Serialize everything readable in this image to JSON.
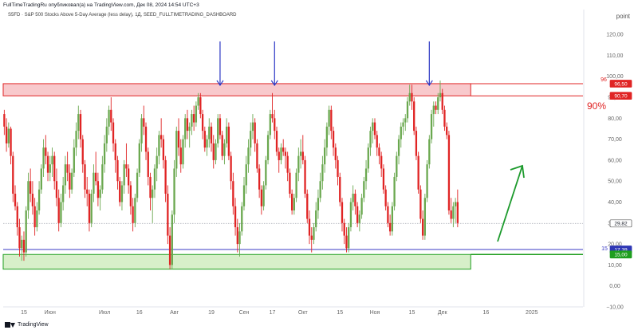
{
  "header": {
    "text": "FullTimeTradingRu опубликовал(а) на TradingView.com, Дек 08, 2024 14:54 UTC+3"
  },
  "symbol_line": "S5FD · S&P 500 Stocks Above 5-Day Average (less delay), 1Д, SEED_FULLTIMETRADING_DASHBOARD",
  "unit_label": "point",
  "footer": {
    "brand": "TradingView"
  },
  "colors": {
    "up": "#6aa84f",
    "down": "#e02424",
    "resistance_zone": "#f8c9cc",
    "resistance_line": "#e02424",
    "support_zone": "#d7efc9",
    "support_line": "#1f9e1f",
    "blue_line": "#3b3bc4",
    "arrow_blue": "#2a36c4",
    "arrow_green": "#1c9a2c"
  },
  "annotations": {
    "level_96": "96",
    "level_15": "15",
    "pct_text": "90%"
  },
  "price_tags": [
    {
      "text": "96,50",
      "value": 96.5,
      "bg": "#e02424"
    },
    {
      "text": "90,70",
      "value": 90.7,
      "bg": "#e02424"
    },
    {
      "text": "29,82",
      "value": 29.82,
      "bg": "#ffffff"
    },
    {
      "text": "17,39",
      "value": 17.39,
      "bg": "#2e37b5"
    },
    {
      "text": "15,00",
      "value": 15.0,
      "bg": "#1f9e1f"
    }
  ],
  "chart_data": {
    "type": "candlestick",
    "ylim": [
      -10,
      125
    ],
    "yticks": [
      120,
      110,
      100,
      90,
      80,
      70,
      60,
      50,
      40,
      30,
      20,
      10,
      0,
      -10
    ],
    "ytick_labels": [
      "120,00",
      "110,00",
      "100,00",
      "90,00",
      "80,00",
      "70,00",
      "60,00",
      "50,00",
      "40,00",
      "30,00",
      "20,00",
      "10,00",
      "0,00",
      "−10,00"
    ],
    "xticks": [
      {
        "label": "15",
        "i": 9
      },
      {
        "label": "Июн",
        "i": 21
      },
      {
        "label": "Июл",
        "i": 46
      },
      {
        "label": "16",
        "i": 62
      },
      {
        "label": "Авг",
        "i": 78
      },
      {
        "label": "19",
        "i": 95
      },
      {
        "label": "Сен",
        "i": 110
      },
      {
        "label": "17",
        "i": 123
      },
      {
        "label": "Окт",
        "i": 137
      },
      {
        "label": "15",
        "i": 154
      },
      {
        "label": "Ноя",
        "i": 170
      },
      {
        "label": "15",
        "i": 187
      },
      {
        "label": "Дек",
        "i": 201
      },
      {
        "label": "16",
        "i": 221
      },
      {
        "label": "2025",
        "i": 242
      }
    ],
    "x_slots": 266,
    "resistance_zone": [
      90.7,
      96.5
    ],
    "support_zone": [
      8.0,
      15.0
    ],
    "blue_level": 17.39,
    "current_value": 29.82,
    "down_arrows_i": [
      99,
      124,
      195
    ],
    "candles": [
      [
        82,
        84,
        72,
        76
      ],
      [
        76,
        80,
        64,
        68
      ],
      [
        68,
        78,
        66,
        75
      ],
      [
        75,
        76,
        58,
        62
      ],
      [
        62,
        64,
        40,
        44
      ],
      [
        44,
        48,
        36,
        38
      ],
      [
        38,
        40,
        24,
        28
      ],
      [
        28,
        32,
        14,
        18
      ],
      [
        18,
        24,
        12,
        22
      ],
      [
        22,
        26,
        12,
        16
      ],
      [
        16,
        38,
        14,
        36
      ],
      [
        36,
        54,
        32,
        50
      ],
      [
        50,
        56,
        40,
        44
      ],
      [
        44,
        50,
        34,
        38
      ],
      [
        38,
        42,
        24,
        28
      ],
      [
        28,
        40,
        26,
        36
      ],
      [
        36,
        50,
        34,
        46
      ],
      [
        46,
        58,
        44,
        56
      ],
      [
        56,
        70,
        52,
        66
      ],
      [
        66,
        72,
        58,
        62
      ],
      [
        62,
        64,
        50,
        54
      ],
      [
        54,
        62,
        50,
        58
      ],
      [
        58,
        66,
        52,
        62
      ],
      [
        62,
        64,
        46,
        50
      ],
      [
        50,
        56,
        38,
        42
      ],
      [
        42,
        46,
        26,
        30
      ],
      [
        30,
        44,
        28,
        40
      ],
      [
        40,
        52,
        36,
        48
      ],
      [
        48,
        62,
        44,
        58
      ],
      [
        58,
        64,
        50,
        54
      ],
      [
        54,
        58,
        42,
        46
      ],
      [
        46,
        56,
        44,
        54
      ],
      [
        54,
        70,
        52,
        66
      ],
      [
        66,
        78,
        62,
        74
      ],
      [
        74,
        86,
        70,
        82
      ],
      [
        82,
        84,
        66,
        70
      ],
      [
        70,
        72,
        54,
        58
      ],
      [
        58,
        60,
        42,
        46
      ],
      [
        46,
        52,
        38,
        44
      ],
      [
        44,
        46,
        26,
        30
      ],
      [
        30,
        46,
        28,
        44
      ],
      [
        44,
        58,
        40,
        54
      ],
      [
        54,
        64,
        48,
        50
      ],
      [
        50,
        54,
        38,
        42
      ],
      [
        42,
        48,
        36,
        46
      ],
      [
        46,
        62,
        44,
        58
      ],
      [
        58,
        72,
        54,
        68
      ],
      [
        68,
        80,
        64,
        76
      ],
      [
        76,
        86,
        72,
        84
      ],
      [
        84,
        90,
        74,
        78
      ],
      [
        78,
        80,
        64,
        68
      ],
      [
        68,
        70,
        54,
        60
      ],
      [
        60,
        62,
        46,
        50
      ],
      [
        50,
        52,
        38,
        40
      ],
      [
        40,
        50,
        36,
        48
      ],
      [
        48,
        60,
        44,
        58
      ],
      [
        58,
        68,
        52,
        56
      ],
      [
        56,
        58,
        44,
        48
      ],
      [
        48,
        50,
        34,
        38
      ],
      [
        38,
        42,
        26,
        30
      ],
      [
        30,
        44,
        28,
        42
      ],
      [
        42,
        56,
        40,
        54
      ],
      [
        54,
        70,
        52,
        68
      ],
      [
        68,
        82,
        64,
        80
      ],
      [
        80,
        86,
        72,
        76
      ],
      [
        76,
        78,
        60,
        64
      ],
      [
        64,
        66,
        48,
        52
      ],
      [
        52,
        54,
        36,
        42
      ],
      [
        42,
        48,
        30,
        46
      ],
      [
        46,
        58,
        42,
        56
      ],
      [
        56,
        66,
        50,
        62
      ],
      [
        62,
        74,
        58,
        72
      ],
      [
        72,
        80,
        66,
        70
      ],
      [
        70,
        72,
        56,
        60
      ],
      [
        60,
        62,
        40,
        44
      ],
      [
        44,
        48,
        20,
        24
      ],
      [
        24,
        28,
        8,
        10
      ],
      [
        10,
        36,
        8,
        34
      ],
      [
        34,
        60,
        30,
        56
      ],
      [
        56,
        76,
        52,
        74
      ],
      [
        74,
        80,
        62,
        66
      ],
      [
        66,
        70,
        54,
        58
      ],
      [
        58,
        72,
        56,
        70
      ],
      [
        70,
        82,
        66,
        80
      ],
      [
        80,
        84,
        70,
        74
      ],
      [
        74,
        78,
        66,
        76
      ],
      [
        76,
        84,
        72,
        82
      ],
      [
        82,
        86,
        74,
        78
      ],
      [
        78,
        88,
        76,
        86
      ],
      [
        86,
        92,
        84,
        90
      ],
      [
        90,
        92,
        80,
        82
      ],
      [
        82,
        84,
        70,
        74
      ],
      [
        74,
        76,
        64,
        66
      ],
      [
        66,
        72,
        62,
        70
      ],
      [
        70,
        80,
        66,
        76
      ],
      [
        76,
        78,
        64,
        68
      ],
      [
        68,
        72,
        56,
        60
      ],
      [
        60,
        70,
        58,
        68
      ],
      [
        68,
        82,
        66,
        80
      ],
      [
        80,
        82,
        70,
        72
      ],
      [
        72,
        74,
        60,
        62
      ],
      [
        62,
        70,
        58,
        68
      ],
      [
        68,
        80,
        66,
        76
      ],
      [
        76,
        78,
        60,
        62
      ],
      [
        62,
        64,
        46,
        50
      ],
      [
        50,
        54,
        34,
        38
      ],
      [
        38,
        42,
        24,
        28
      ],
      [
        28,
        32,
        16,
        20
      ],
      [
        20,
        30,
        14,
        26
      ],
      [
        26,
        40,
        24,
        38
      ],
      [
        38,
        52,
        36,
        48
      ],
      [
        48,
        62,
        44,
        58
      ],
      [
        58,
        70,
        54,
        66
      ],
      [
        66,
        78,
        62,
        74
      ],
      [
        74,
        82,
        70,
        78
      ],
      [
        78,
        80,
        64,
        68
      ],
      [
        68,
        70,
        54,
        56
      ],
      [
        56,
        58,
        42,
        46
      ],
      [
        46,
        48,
        34,
        38
      ],
      [
        38,
        50,
        36,
        48
      ],
      [
        48,
        62,
        46,
        60
      ],
      [
        60,
        74,
        58,
        72
      ],
      [
        72,
        84,
        70,
        82
      ],
      [
        82,
        92,
        78,
        80
      ],
      [
        80,
        84,
        70,
        74
      ],
      [
        74,
        76,
        62,
        64
      ],
      [
        64,
        66,
        54,
        60
      ],
      [
        60,
        68,
        58,
        66
      ],
      [
        66,
        70,
        62,
        64
      ],
      [
        64,
        66,
        56,
        62
      ],
      [
        62,
        64,
        50,
        54
      ],
      [
        54,
        56,
        42,
        44
      ],
      [
        44,
        46,
        34,
        36
      ],
      [
        36,
        44,
        34,
        42
      ],
      [
        42,
        56,
        40,
        54
      ],
      [
        54,
        66,
        50,
        62
      ],
      [
        62,
        70,
        56,
        64
      ],
      [
        64,
        72,
        58,
        60
      ],
      [
        60,
        62,
        42,
        44
      ],
      [
        44,
        46,
        30,
        32
      ],
      [
        32,
        36,
        20,
        24
      ],
      [
        24,
        28,
        16,
        22
      ],
      [
        22,
        30,
        20,
        28
      ],
      [
        28,
        40,
        26,
        36
      ],
      [
        36,
        46,
        32,
        42
      ],
      [
        42,
        54,
        40,
        50
      ],
      [
        50,
        62,
        46,
        58
      ],
      [
        58,
        70,
        54,
        66
      ],
      [
        66,
        78,
        62,
        76
      ],
      [
        76,
        86,
        72,
        84
      ],
      [
        84,
        86,
        70,
        74
      ],
      [
        74,
        76,
        62,
        66
      ],
      [
        66,
        68,
        56,
        60
      ],
      [
        60,
        62,
        48,
        52
      ],
      [
        52,
        54,
        38,
        40
      ],
      [
        40,
        42,
        26,
        30
      ],
      [
        30,
        32,
        20,
        24
      ],
      [
        24,
        28,
        16,
        18
      ],
      [
        18,
        30,
        16,
        28
      ],
      [
        28,
        42,
        26,
        40
      ],
      [
        40,
        48,
        36,
        44
      ],
      [
        44,
        46,
        34,
        38
      ],
      [
        38,
        40,
        28,
        30
      ],
      [
        30,
        36,
        26,
        34
      ],
      [
        34,
        44,
        32,
        42
      ],
      [
        42,
        52,
        40,
        50
      ],
      [
        50,
        60,
        46,
        56
      ],
      [
        56,
        68,
        54,
        66
      ],
      [
        66,
        76,
        62,
        74
      ],
      [
        74,
        80,
        68,
        78
      ],
      [
        78,
        80,
        70,
        72
      ],
      [
        72,
        74,
        62,
        66
      ],
      [
        66,
        68,
        58,
        62
      ],
      [
        62,
        64,
        52,
        56
      ],
      [
        56,
        58,
        44,
        46
      ],
      [
        46,
        48,
        36,
        38
      ],
      [
        38,
        40,
        28,
        30
      ],
      [
        30,
        34,
        24,
        26
      ],
      [
        26,
        40,
        24,
        38
      ],
      [
        38,
        54,
        36,
        52
      ],
      [
        52,
        64,
        50,
        62
      ],
      [
        62,
        72,
        58,
        70
      ],
      [
        70,
        78,
        66,
        76
      ],
      [
        76,
        80,
        72,
        78
      ],
      [
        78,
        82,
        74,
        80
      ],
      [
        80,
        90,
        78,
        88
      ],
      [
        88,
        96,
        86,
        92
      ],
      [
        92,
        96,
        84,
        88
      ],
      [
        88,
        90,
        72,
        74
      ],
      [
        74,
        76,
        60,
        62
      ],
      [
        62,
        64,
        44,
        46
      ],
      [
        46,
        48,
        30,
        32
      ],
      [
        32,
        36,
        22,
        24
      ],
      [
        24,
        44,
        22,
        42
      ],
      [
        42,
        60,
        40,
        58
      ],
      [
        58,
        72,
        56,
        70
      ],
      [
        70,
        84,
        68,
        82
      ],
      [
        82,
        88,
        76,
        86
      ],
      [
        86,
        88,
        82,
        84
      ],
      [
        84,
        92,
        82,
        90
      ],
      [
        90,
        98,
        88,
        92
      ],
      [
        92,
        94,
        82,
        84
      ],
      [
        84,
        86,
        74,
        76
      ],
      [
        76,
        78,
        70,
        72
      ],
      [
        72,
        74,
        34,
        36
      ],
      [
        36,
        42,
        30,
        32
      ],
      [
        32,
        40,
        28,
        38
      ],
      [
        38,
        42,
        30,
        40
      ],
      [
        40,
        46,
        28,
        30
      ]
    ]
  }
}
